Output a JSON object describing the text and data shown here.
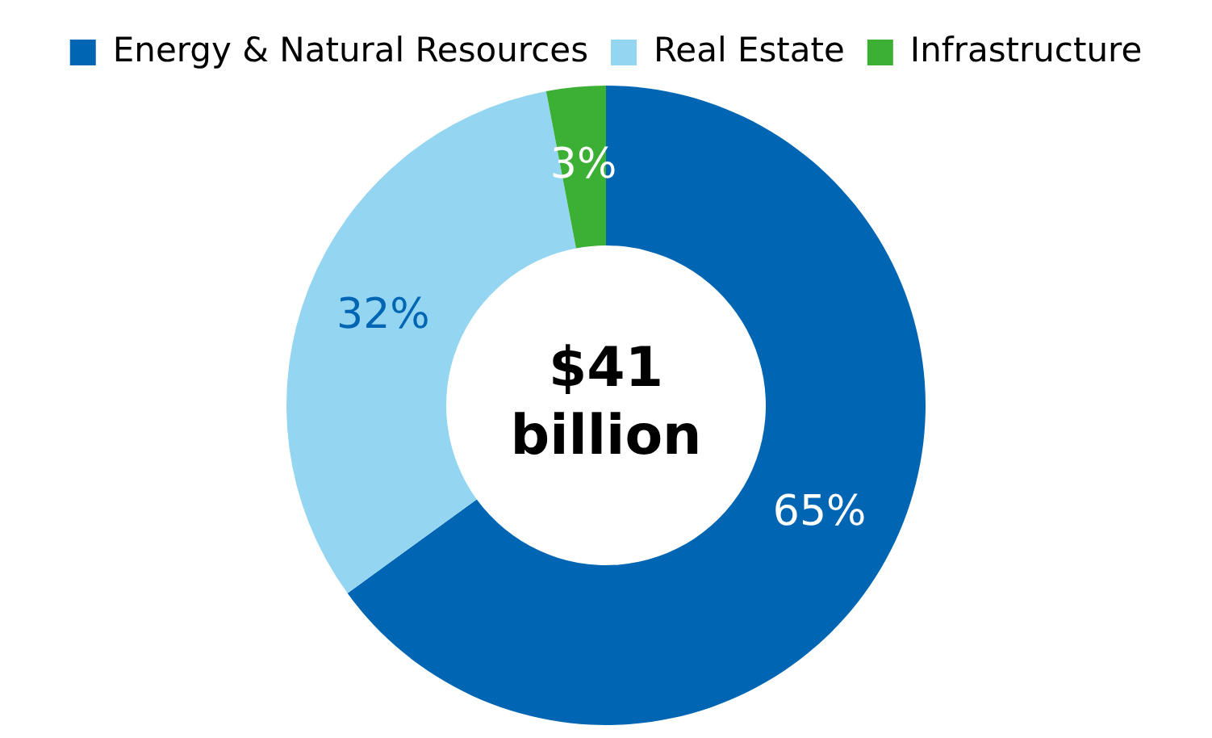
{
  "chart_data": {
    "type": "donut",
    "categories": [
      "Energy & Natural Resources",
      "Real Estate",
      "Infrastructure"
    ],
    "values": [
      65,
      32,
      3
    ],
    "colors": [
      "#0066b3",
      "#94d5f2",
      "#3cb034"
    ],
    "value_labels": [
      "65%",
      "32%",
      "3%"
    ],
    "annotations": [
      "$41 billion"
    ],
    "legend": "top"
  }
}
